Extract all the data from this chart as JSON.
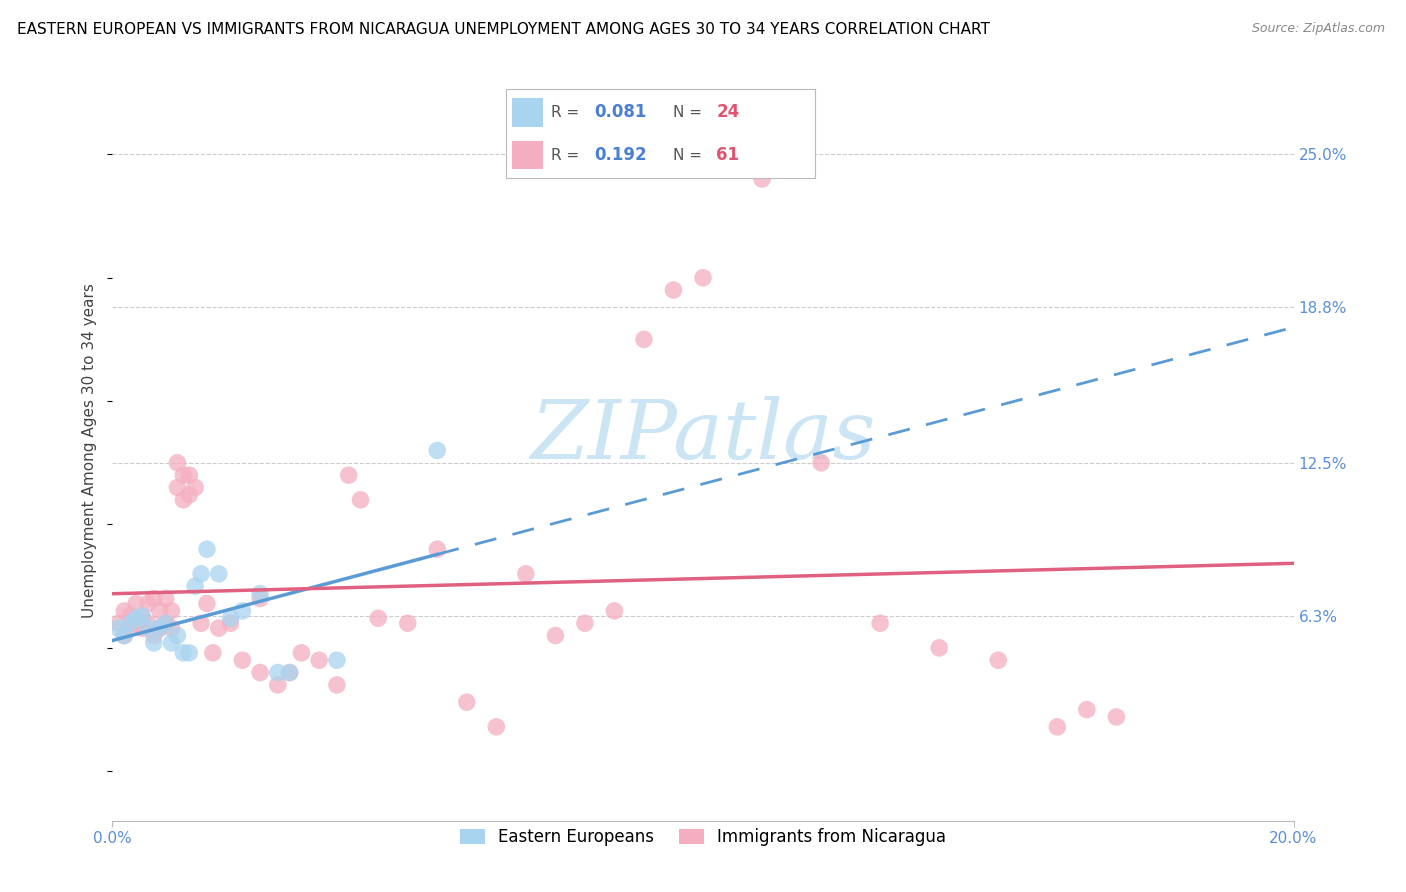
{
  "title": "EASTERN EUROPEAN VS IMMIGRANTS FROM NICARAGUA UNEMPLOYMENT AMONG AGES 30 TO 34 YEARS CORRELATION CHART",
  "source": "Source: ZipAtlas.com",
  "ylabel_label": "Unemployment Among Ages 30 to 34 years",
  "xmin": 0.0,
  "xmax": 0.2,
  "ymin": -0.02,
  "ymax": 0.28,
  "ytick_positions": [
    0.063,
    0.125,
    0.188,
    0.25
  ],
  "ytick_labels": [
    "6.3%",
    "12.5%",
    "18.8%",
    "25.0%"
  ],
  "xtick_positions": [
    0.0,
    0.2
  ],
  "xtick_labels": [
    "0.0%",
    "20.0%"
  ],
  "series1_label": "Eastern Europeans",
  "series2_label": "Immigrants from Nicaragua",
  "series1_color": "#a8d4f0",
  "series2_color": "#f5aec0",
  "series1_line_color": "#5b9bd5",
  "series2_line_color": "#e06080",
  "tick_color": "#5b8fd4",
  "watermark_color": "#cce5f5",
  "r_color": "#4a7fd4",
  "n_color": "#e05570",
  "watermark": "ZIPatlas",
  "title_fontsize": 11,
  "axis_label_fontsize": 11,
  "tick_fontsize": 11,
  "legend_r1": "0.081",
  "legend_n1": "24",
  "legend_r2": "0.192",
  "legend_n2": "61",
  "ee_x": [
    0.001,
    0.002,
    0.003,
    0.004,
    0.005,
    0.006,
    0.007,
    0.008,
    0.009,
    0.01,
    0.011,
    0.012,
    0.013,
    0.014,
    0.015,
    0.016,
    0.018,
    0.02,
    0.022,
    0.025,
    0.028,
    0.03,
    0.038,
    0.055
  ],
  "ee_y": [
    0.058,
    0.055,
    0.06,
    0.062,
    0.063,
    0.058,
    0.052,
    0.058,
    0.06,
    0.052,
    0.055,
    0.048,
    0.048,
    0.075,
    0.08,
    0.09,
    0.08,
    0.062,
    0.065,
    0.072,
    0.04,
    0.04,
    0.045,
    0.13
  ],
  "nic_x": [
    0.001,
    0.002,
    0.002,
    0.003,
    0.003,
    0.004,
    0.004,
    0.005,
    0.005,
    0.006,
    0.006,
    0.007,
    0.007,
    0.008,
    0.008,
    0.009,
    0.009,
    0.01,
    0.01,
    0.011,
    0.011,
    0.012,
    0.012,
    0.013,
    0.013,
    0.014,
    0.015,
    0.016,
    0.017,
    0.018,
    0.02,
    0.022,
    0.025,
    0.025,
    0.028,
    0.03,
    0.032,
    0.035,
    0.038,
    0.04,
    0.042,
    0.045,
    0.05,
    0.055,
    0.06,
    0.065,
    0.07,
    0.075,
    0.08,
    0.085,
    0.09,
    0.095,
    0.1,
    0.11,
    0.12,
    0.13,
    0.14,
    0.15,
    0.16,
    0.165,
    0.17
  ],
  "nic_y": [
    0.06,
    0.055,
    0.065,
    0.058,
    0.063,
    0.06,
    0.068,
    0.058,
    0.062,
    0.06,
    0.068,
    0.055,
    0.07,
    0.058,
    0.065,
    0.06,
    0.07,
    0.058,
    0.065,
    0.125,
    0.115,
    0.12,
    0.11,
    0.12,
    0.112,
    0.115,
    0.06,
    0.068,
    0.048,
    0.058,
    0.06,
    0.045,
    0.04,
    0.07,
    0.035,
    0.04,
    0.048,
    0.045,
    0.035,
    0.12,
    0.11,
    0.062,
    0.06,
    0.09,
    0.028,
    0.018,
    0.08,
    0.055,
    0.06,
    0.065,
    0.175,
    0.195,
    0.2,
    0.24,
    0.125,
    0.06,
    0.05,
    0.045,
    0.018,
    0.025,
    0.022
  ]
}
